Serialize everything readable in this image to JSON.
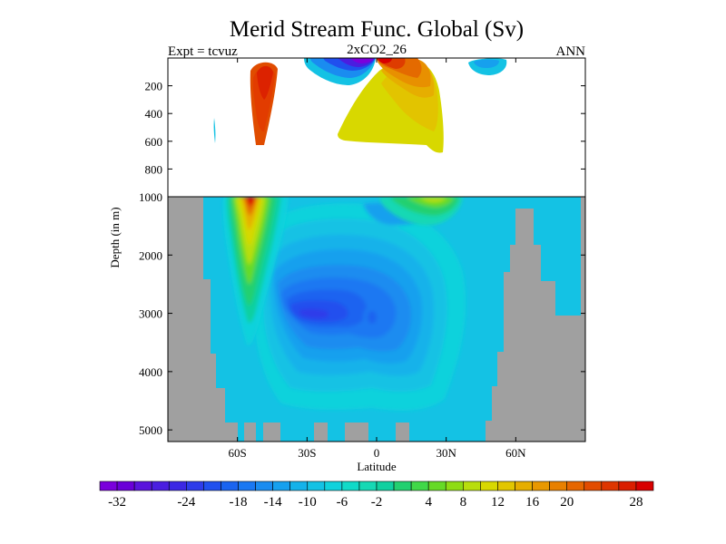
{
  "chart_data": {
    "type": "heatmap",
    "title": "Merid Stream Func. Global (Sv)",
    "subtitle_left": "Expt = tcvuz",
    "subtitle_center": "2xCO2_26",
    "subtitle_right": "ANN",
    "xlabel": "Latitude",
    "ylabel": "Depth (in m)",
    "x_ticks": [
      {
        "value": -60,
        "label": "60S"
      },
      {
        "value": -30,
        "label": "30S"
      },
      {
        "value": 0,
        "label": "0"
      },
      {
        "value": 30,
        "label": "30N"
      },
      {
        "value": 60,
        "label": "60N"
      }
    ],
    "y_ticks_upper": [
      200,
      400,
      600,
      800,
      1000
    ],
    "y_ticks_lower": [
      2000,
      3000,
      4000,
      5000
    ],
    "xlim": [
      -90,
      90
    ],
    "ylim_upper": [
      0,
      1000
    ],
    "ylim_lower": [
      1000,
      5200
    ],
    "colorbar": {
      "levels": [
        -36,
        -32,
        -30,
        -28,
        -26,
        -24,
        -22,
        -20,
        -18,
        -16,
        -14,
        -12,
        -10,
        -8,
        -6,
        -4,
        -2,
        0,
        2,
        4,
        6,
        8,
        10,
        12,
        14,
        16,
        18,
        20,
        22,
        24,
        26,
        28,
        32
      ],
      "colors": [
        "#7a00dc",
        "#6a00d8",
        "#5a14dc",
        "#4a1ee0",
        "#3c28e4",
        "#2e3cea",
        "#2050ee",
        "#1a64f0",
        "#1a78f2",
        "#1a8cf0",
        "#16a0ee",
        "#14b2ea",
        "#14c2e4",
        "#10d2dc",
        "#10dac8",
        "#16d8b4",
        "#10d0a0",
        "#22d070",
        "#40d848",
        "#66da26",
        "#8edc14",
        "#b8de0c",
        "#d8d800",
        "#e2c600",
        "#e6ae00",
        "#e89800",
        "#e88000",
        "#e66600",
        "#e24c00",
        "#de3600",
        "#da1e00",
        "#d80000"
      ],
      "labels": [
        {
          "value": -32,
          "label": "-32"
        },
        {
          "value": -24,
          "label": "-24"
        },
        {
          "value": -18,
          "label": "-18"
        },
        {
          "value": -14,
          "label": "-14"
        },
        {
          "value": -10,
          "label": "-10"
        },
        {
          "value": -6,
          "label": "-6"
        },
        {
          "value": -2,
          "label": "-2"
        },
        {
          "value": 4,
          "label": "4"
        },
        {
          "value": 8,
          "label": "8"
        },
        {
          "value": 12,
          "label": "12"
        },
        {
          "value": 16,
          "label": "16"
        },
        {
          "value": 20,
          "label": "20"
        },
        {
          "value": 28,
          "label": "28"
        }
      ]
    },
    "land_color": "#a0a0a0",
    "background_value": -1,
    "features": [
      {
        "name": "antarctic-surface-cell",
        "value": 27,
        "lat": [
          -55,
          -48
        ],
        "depth": [
          60,
          650
        ]
      },
      {
        "name": "antarctic-deep-limb",
        "value": 10,
        "lat": [
          -57,
          -47
        ],
        "depth": [
          1000,
          3300
        ]
      },
      {
        "name": "deep-cell",
        "value": -14,
        "lat": [
          -40,
          5
        ],
        "depth": [
          1800,
          4200
        ]
      },
      {
        "name": "tropical-negative-cell",
        "value": -26,
        "lat": [
          -15,
          0
        ],
        "depth": [
          50,
          200
        ]
      },
      {
        "name": "tropical-positive-cell",
        "value": 24,
        "lat": [
          0,
          15
        ],
        "depth": [
          50,
          300
        ]
      },
      {
        "name": "northern-cell",
        "value": 12,
        "lat": [
          -8,
          22
        ],
        "depth": [
          200,
          700
        ]
      },
      {
        "name": "north-atlantic-deep-limb",
        "value": 6,
        "lat": [
          10,
          25
        ],
        "depth": [
          1000,
          1400
        ]
      },
      {
        "name": "subpolar-cell",
        "value": -6,
        "lat": [
          40,
          50
        ],
        "depth": [
          50,
          150
        ]
      },
      {
        "name": "weddell-feature",
        "value": -6,
        "lat": [
          -72,
          -71
        ],
        "depth": [
          400,
          600
        ]
      }
    ]
  }
}
